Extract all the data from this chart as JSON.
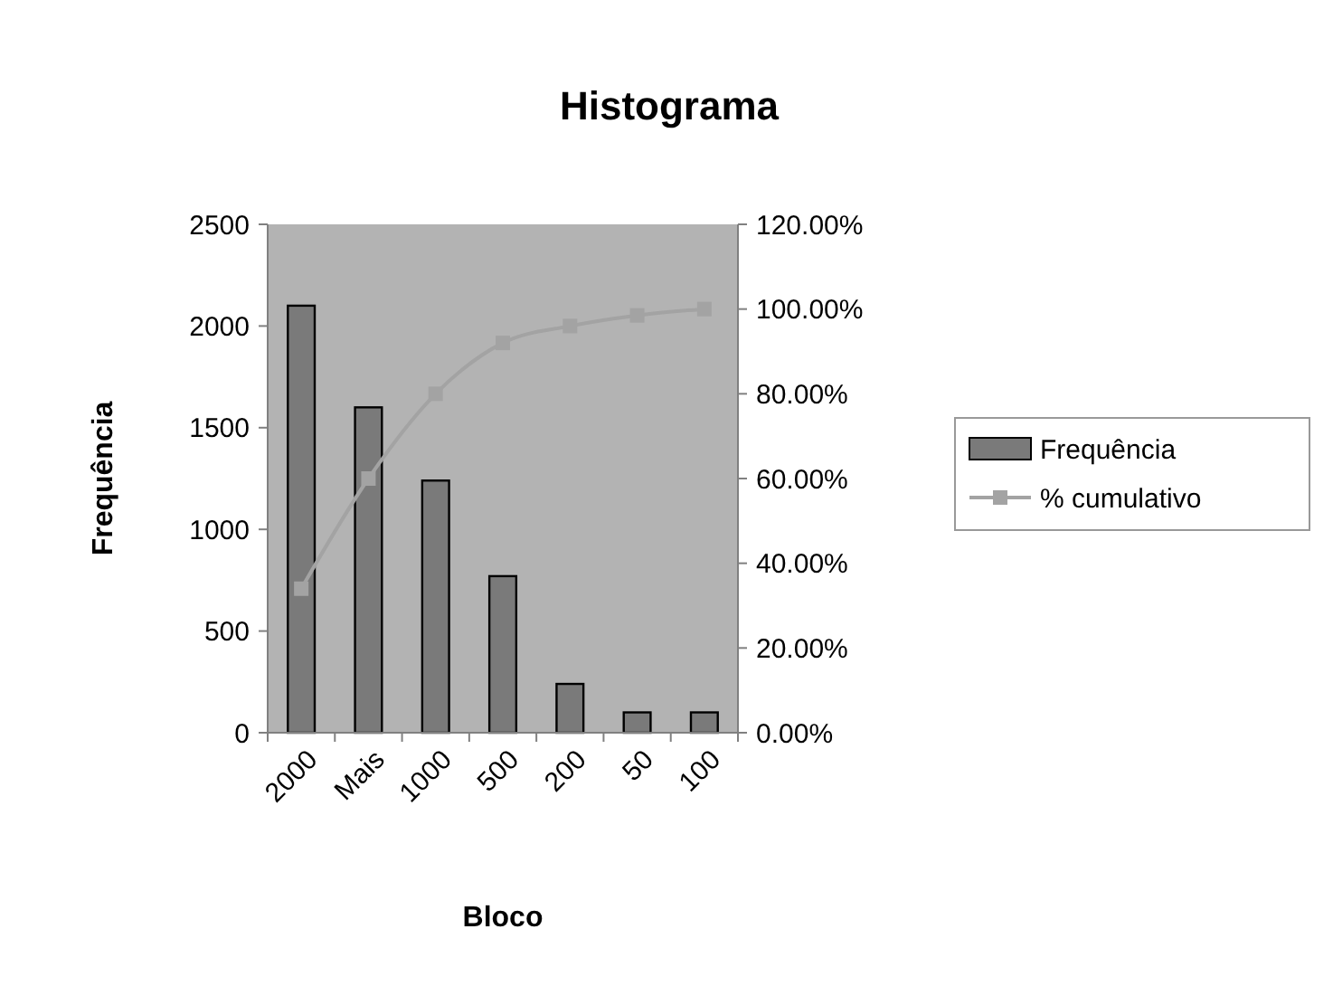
{
  "chart_data": {
    "type": "bar",
    "title": "Histograma",
    "xlabel": "Bloco",
    "ylabel": "Frequência",
    "categories": [
      "2000",
      "Mais",
      "1000",
      "500",
      "200",
      "50",
      "100"
    ],
    "series": [
      {
        "name": "Frequência",
        "color": "#7a7a7a",
        "values": [
          2100,
          1600,
          1240,
          770,
          240,
          100,
          100
        ]
      },
      {
        "name": "% cumulativo",
        "type": "line",
        "axis": "y2",
        "color": "#a3a3a3",
        "marker": "square",
        "values": [
          34,
          60,
          80,
          92,
          96,
          98.5,
          100
        ]
      }
    ],
    "ylim": [
      0,
      2500
    ],
    "yticks": [
      0,
      500,
      1000,
      1500,
      2000,
      2500
    ],
    "y2lim": [
      0,
      120
    ],
    "y2ticks": [
      {
        "value": 0,
        "label": "0.00%"
      },
      {
        "value": 20,
        "label": "20.00%"
      },
      {
        "value": 40,
        "label": "40.00%"
      },
      {
        "value": 60,
        "label": "60.00%"
      },
      {
        "value": 80,
        "label": "80.00%"
      },
      {
        "value": 100,
        "label": "100.00%"
      },
      {
        "value": 120,
        "label": "120.00%"
      }
    ],
    "legend": "right",
    "grid": false
  }
}
